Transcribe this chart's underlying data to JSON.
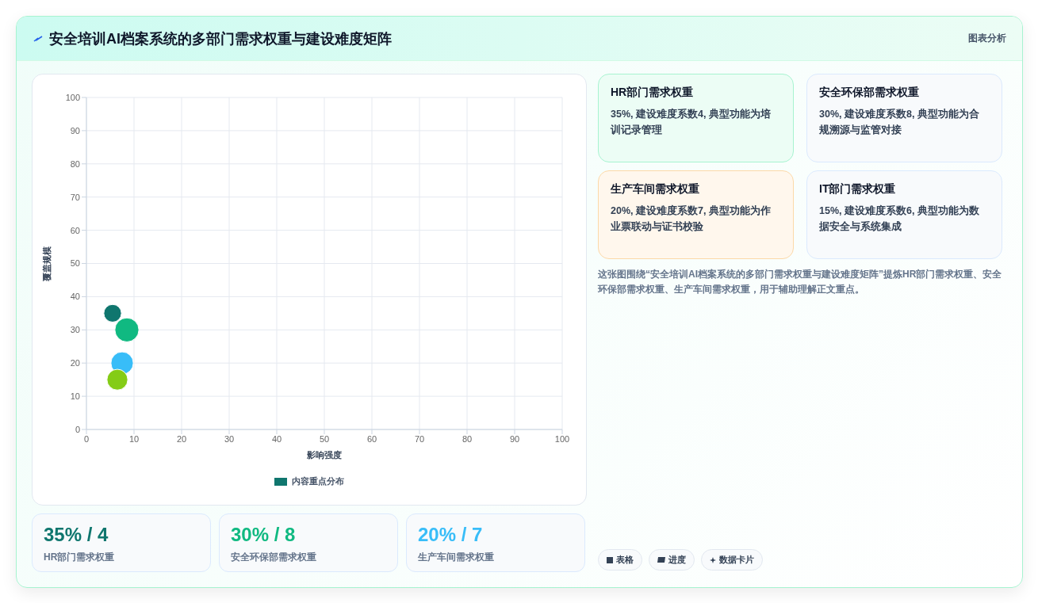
{
  "chart_data": {
    "type": "bubble",
    "title": "安全培训AI档案系统的多部门需求权重与建设难度矩阵",
    "xlabel": "影响强度",
    "ylabel": "覆盖规模",
    "x": [
      5.5,
      8.5,
      7.5,
      6.5
    ],
    "series": [
      {
        "name": "内容重点分布",
        "color": "#0f766e",
        "values": [
          35,
          30,
          20,
          15
        ],
        "sizes": [
          0.54,
          1,
          0.87,
          0.75
        ],
        "colors": [
          "#0f766e",
          "#10b981",
          "#38bdf8",
          "#84cc16"
        ]
      }
    ],
    "xlim": [
      0,
      100
    ],
    "xticks": [
      0,
      10,
      20,
      30,
      40,
      50,
      60,
      70,
      80,
      90,
      100
    ],
    "ylim": [
      0,
      100
    ],
    "yticks": [
      0,
      10,
      20,
      30,
      40,
      50,
      60,
      70,
      80,
      90,
      100
    ],
    "grid": true,
    "legend": "bottom",
    "annotations": [
      "图表分析",
      "HR部门需求权重",
      "35%, 建设难度系数4, 典型功能为培训记录管理",
      "安全环保部需求权重",
      "30%, 建设难度系数8, 典型功能为合规溯源与监管对接",
      "生产车间需求权重",
      "20%, 建设难度系数7, 典型功能为作业票联动与证书校验",
      "IT部门需求权重",
      "15%, 建设难度系数6, 典型功能为数据安全与系统集成",
      "这张图围绕“安全培训AI档案系统的多部门需求权重与建设难度矩阵”提炼HR部门需求权重、安全环保部需求权重、生产车间需求权重，用于辅助理解正文重点。",
      "35% / 4",
      "HR部门需求权重",
      "30% / 8",
      "安全环保部需求权重",
      "20% / 7",
      "生产车间需求权重",
      "表格",
      "进度",
      "数据卡片"
    ]
  }
}
